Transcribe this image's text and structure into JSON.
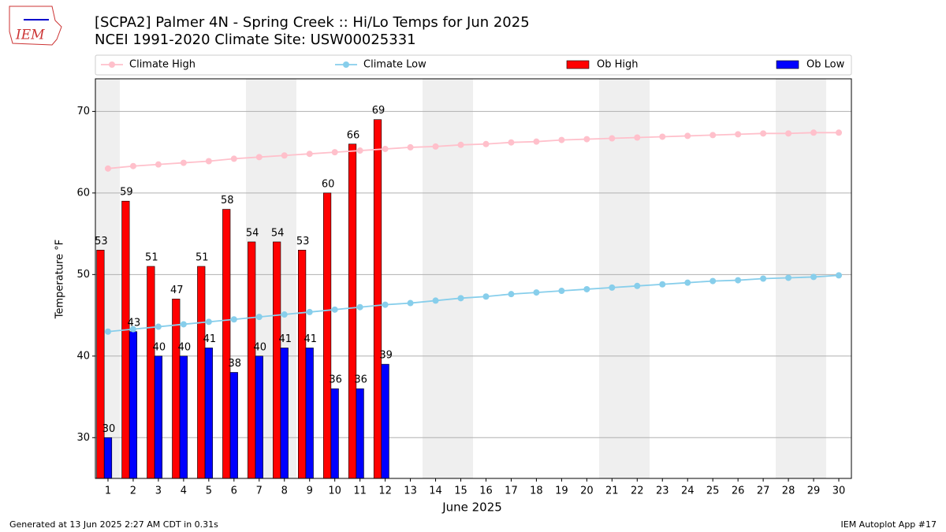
{
  "logo": "IEM",
  "footer_left": "Generated at 13 Jun 2025 2:27 AM CDT in 0.31s",
  "footer_right": "IEM Autoplot App #17",
  "chart_data": {
    "type": "bar",
    "title": "[SCPA2] Palmer 4N - Spring Creek :: Hi/Lo Temps for Jun 2025",
    "subtitle": "NCEI 1991-2020 Climate Site: USW00025331",
    "x_label": "June 2025",
    "y_label": "Temperature °F",
    "categories": [
      "1",
      "2",
      "3",
      "4",
      "5",
      "6",
      "7",
      "8",
      "9",
      "10",
      "11",
      "12",
      "13",
      "14",
      "15",
      "16",
      "17",
      "18",
      "19",
      "20",
      "21",
      "22",
      "23",
      "24",
      "25",
      "26",
      "27",
      "28",
      "29",
      "30"
    ],
    "ylim": [
      25,
      74
    ],
    "yticks": [
      30,
      40,
      50,
      60,
      70
    ],
    "grid": true,
    "series": [
      {
        "name": "Climate High",
        "type": "line",
        "color": "#ffc0cb",
        "values": [
          63.0,
          63.3,
          63.5,
          63.7,
          63.9,
          64.2,
          64.4,
          64.6,
          64.8,
          65.0,
          65.2,
          65.4,
          65.6,
          65.7,
          65.9,
          66.0,
          66.2,
          66.3,
          66.5,
          66.6,
          66.7,
          66.8,
          66.9,
          67.0,
          67.1,
          67.2,
          67.3,
          67.3,
          67.4,
          67.4
        ]
      },
      {
        "name": "Climate Low",
        "type": "line",
        "color": "#87ceeb",
        "values": [
          43.0,
          43.3,
          43.6,
          43.9,
          44.2,
          44.5,
          44.8,
          45.1,
          45.4,
          45.7,
          46.0,
          46.3,
          46.5,
          46.8,
          47.1,
          47.3,
          47.6,
          47.8,
          48.0,
          48.2,
          48.4,
          48.6,
          48.8,
          49.0,
          49.2,
          49.3,
          49.5,
          49.6,
          49.7,
          49.9
        ]
      },
      {
        "name": "Ob High",
        "type": "bar",
        "color": "#ff0000",
        "values": [
          53,
          59,
          51,
          47,
          51,
          58,
          54,
          54,
          53,
          60,
          66,
          69,
          null,
          null,
          null,
          null,
          null,
          null,
          null,
          null,
          null,
          null,
          null,
          null,
          null,
          null,
          null,
          null,
          null,
          null
        ]
      },
      {
        "name": "Ob Low",
        "type": "bar",
        "color": "#0000ff",
        "values": [
          30,
          43,
          40,
          40,
          41,
          38,
          40,
          41,
          41,
          36,
          36,
          39,
          null,
          null,
          null,
          null,
          null,
          null,
          null,
          null,
          null,
          null,
          null,
          null,
          null,
          null,
          null,
          null,
          null,
          null
        ]
      }
    ]
  }
}
